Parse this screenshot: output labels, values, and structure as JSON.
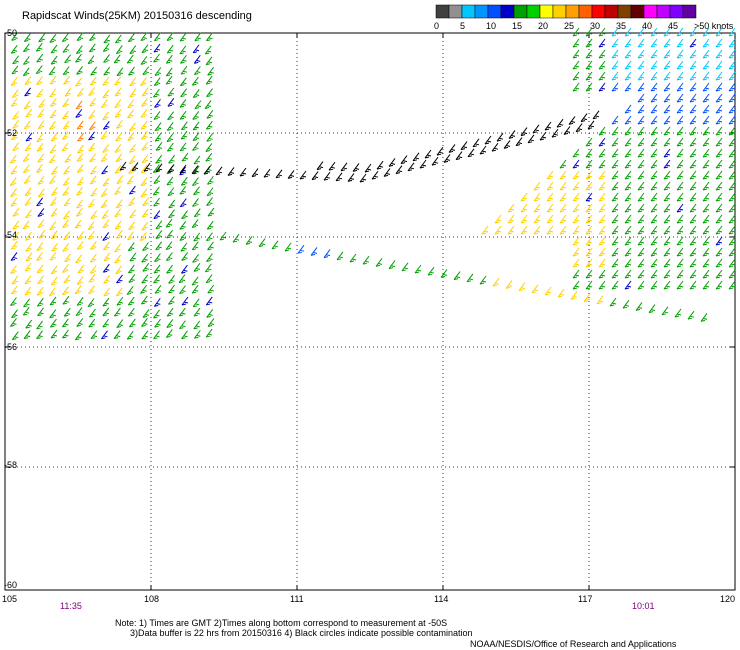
{
  "title": "Rapidscat Winds(25KM) 20150316 descending",
  "legend": {
    "colors": [
      "#404040",
      "#909090",
      "#00c8ff",
      "#0096ff",
      "#0050ff",
      "#0000c8",
      "#00a000",
      "#00d000",
      "#ffff00",
      "#ffd000",
      "#ffa000",
      "#ff6000",
      "#ff0000",
      "#c00000",
      "#804000",
      "#600000",
      "#ff00ff",
      "#c000ff",
      "#8000ff",
      "#6000a0"
    ],
    "labels": [
      "0",
      "5",
      "10",
      "15",
      "20",
      "25",
      "30",
      "35",
      "40",
      "45",
      ">50 knots"
    ]
  },
  "map": {
    "lat_labels": [
      "-50",
      "-52",
      "-54",
      "-56",
      "-58",
      "-60"
    ],
    "lon_labels": [
      "105",
      "108",
      "111",
      "114",
      "117",
      "120"
    ],
    "lat_range": [
      -50,
      -60
    ],
    "lon_range": [
      105,
      120
    ],
    "grid": true
  },
  "times": [
    "11:35",
    "10:01"
  ],
  "notes": [
    "Note: 1) Times are GMT 2)Times along bottom correspond to measurement at -50S",
    "      3)Data buffer is 22 hrs from 20150316 4) Black circles indicate possible contamination"
  ],
  "credit": "NOAA/NESDIS/Office of Research and Applications"
}
